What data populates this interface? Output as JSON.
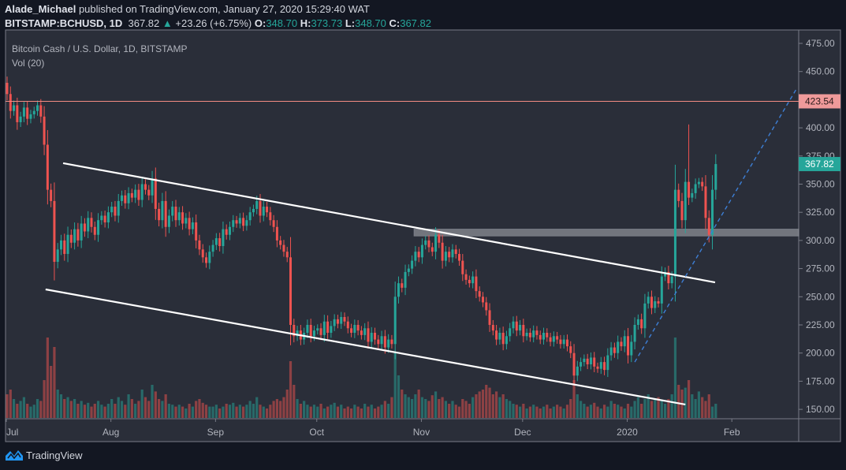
{
  "header": {
    "author": "Alade_Michael",
    "published_text": "published on TradingView.com, January 27, 2020 15:29:40 WAT",
    "symbol": "BITSTAMP:BCHUSD, 1D",
    "last": "367.82",
    "change": "+23.26 (+6.75%)",
    "o_label": "O:",
    "o": "348.70",
    "h_label": "H:",
    "h": "373.73",
    "l_label": "L:",
    "l": "348.70",
    "c_label": "C:",
    "c": "367.82"
  },
  "legend": {
    "title": "Bitcoin Cash / U.S. Dollar, 1D, BITSTAMP",
    "volume": "Vol (20)"
  },
  "footer": {
    "brand": "TradingView"
  },
  "colors": {
    "up": "#26a69a",
    "down": "#ef5350",
    "background": "#2a2e39",
    "resistance": "#f28b82",
    "zone": "#787b86",
    "trendline": "#ffffff",
    "dashed": "#3d7fd6"
  },
  "chart_data": {
    "type": "candlestick",
    "title": "Bitcoin Cash / U.S. Dollar, 1D, BITSTAMP",
    "first_date": "2019-07-01",
    "last_date": "2020-01-27",
    "first_open": 440,
    "x_tick_labels": [
      {
        "label": "Jul",
        "day": 0
      },
      {
        "label": "Aug",
        "day": 31
      },
      {
        "label": "Sep",
        "day": 62
      },
      {
        "label": "Oct",
        "day": 92
      },
      {
        "label": "Nov",
        "day": 123
      },
      {
        "label": "Dec",
        "day": 153
      },
      {
        "label": "2020",
        "day": 184
      },
      {
        "label": "Feb",
        "day": 215
      }
    ],
    "y_ticks": [
      "475.00",
      "450.00",
      "400.00",
      "375.00",
      "350.00",
      "325.00",
      "300.00",
      "275.00",
      "250.00",
      "225.00",
      "200.00",
      "175.00",
      "150.00"
    ],
    "ylim": [
      142,
      485
    ],
    "xlim_days": [
      -0.5,
      235
    ],
    "closes": [
      430,
      415,
      420,
      405,
      410,
      418,
      408,
      412,
      415,
      420,
      410,
      385,
      345,
      335,
      281,
      292,
      300,
      288,
      305,
      298,
      310,
      300,
      315,
      308,
      320,
      312,
      305,
      318,
      322,
      316,
      325,
      330,
      322,
      335,
      340,
      333,
      342,
      338,
      345,
      336,
      350,
      345,
      340,
      355,
      328,
      318,
      335,
      312,
      322,
      330,
      318,
      325,
      315,
      320,
      310,
      316,
      300,
      292,
      285,
      280,
      290,
      296,
      302,
      295,
      310,
      305,
      312,
      318,
      315,
      320,
      313,
      318,
      325,
      328,
      335,
      322,
      330,
      325,
      318,
      312,
      300,
      296,
      290,
      285,
      225,
      215,
      220,
      212,
      218,
      225,
      215,
      220,
      222,
      216,
      228,
      218,
      224,
      230,
      226,
      232,
      228,
      222,
      218,
      225,
      220,
      216,
      222,
      210,
      218,
      212,
      208,
      215,
      205,
      212,
      208,
      250,
      262,
      258,
      272,
      275,
      282,
      290,
      285,
      296,
      300,
      294,
      290,
      305,
      298,
      282,
      290,
      285,
      292,
      288,
      282,
      270,
      265,
      262,
      268,
      255,
      250,
      245,
      238,
      225,
      220,
      212,
      218,
      208,
      215,
      222,
      228,
      220,
      225,
      215,
      218,
      214,
      220,
      216,
      212,
      218,
      214,
      210,
      215,
      212,
      208,
      212,
      206,
      200,
      180,
      188,
      192,
      195,
      190,
      196,
      188,
      186,
      192,
      185,
      198,
      205,
      200,
      210,
      206,
      215,
      198,
      210,
      225,
      230,
      222,
      244,
      250,
      240,
      246,
      244,
      268,
      272,
      262,
      268,
      345,
      335,
      318,
      352,
      338,
      342,
      350,
      352,
      348,
      320,
      305,
      345,
      367.82
    ],
    "volume_relative": [
      25,
      30,
      20,
      15,
      18,
      22,
      15,
      12,
      14,
      20,
      18,
      40,
      85,
      55,
      75,
      30,
      25,
      20,
      22,
      18,
      20,
      15,
      18,
      14,
      16,
      12,
      15,
      18,
      14,
      12,
      15,
      20,
      15,
      22,
      18,
      14,
      25,
      20,
      15,
      18,
      30,
      22,
      18,
      35,
      28,
      20,
      18,
      25,
      15,
      14,
      12,
      14,
      12,
      10,
      15,
      12,
      18,
      20,
      16,
      14,
      12,
      12,
      14,
      10,
      12,
      15,
      14,
      16,
      12,
      14,
      12,
      14,
      18,
      15,
      22,
      14,
      12,
      10,
      14,
      18,
      20,
      18,
      22,
      30,
      60,
      35,
      20,
      15,
      18,
      14,
      12,
      14,
      12,
      15,
      10,
      12,
      14,
      16,
      12,
      14,
      10,
      12,
      10,
      14,
      12,
      10,
      15,
      12,
      14,
      10,
      12,
      14,
      18,
      15,
      22,
      70,
      45,
      30,
      25,
      22,
      20,
      25,
      30,
      22,
      20,
      18,
      24,
      28,
      20,
      22,
      18,
      15,
      18,
      14,
      12,
      20,
      18,
      15,
      22,
      25,
      28,
      30,
      35,
      32,
      25,
      28,
      22,
      25,
      20,
      18,
      15,
      14,
      12,
      15,
      10,
      12,
      14,
      12,
      10,
      12,
      14,
      10,
      12,
      14,
      12,
      10,
      14,
      20,
      40,
      25,
      18,
      15,
      12,
      14,
      16,
      12,
      10,
      14,
      12,
      18,
      15,
      14,
      12,
      10,
      15,
      12,
      18,
      22,
      15,
      20,
      25,
      18,
      20,
      22,
      18,
      15,
      20,
      25,
      85,
      35,
      30,
      32,
      40,
      25,
      20,
      28,
      22,
      18,
      25,
      12,
      15
    ],
    "notable_high": {
      "day": 202,
      "price": 403
    },
    "drawings": {
      "resistance_line": {
        "price": 423.54,
        "label": "423.54"
      },
      "last_price_label": "367.82",
      "support_zone": {
        "from_day": 120.6,
        "low": 304,
        "high": 310
      },
      "upper_channel": {
        "d1": 16.6,
        "p1": 368.6,
        "d2": 209.8,
        "p2": 262.8
      },
      "lower_channel": {
        "d1": 11.4,
        "p1": 256.5,
        "d2": 201,
        "p2": 154.3
      },
      "dashed_trendline": {
        "d1": 186,
        "p1": 192,
        "d2": 234,
        "p2": 435
      }
    }
  }
}
